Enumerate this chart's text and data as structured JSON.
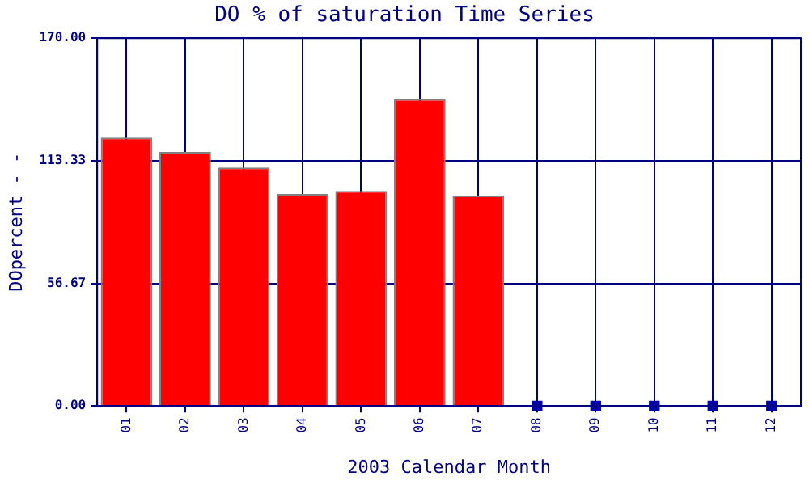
{
  "chart_data": {
    "type": "bar",
    "title": "DO % of saturation Time Series",
    "xlabel": "2003 Calendar Month",
    "ylabel": "DOpercent - -",
    "categories": [
      "01",
      "02",
      "03",
      "04",
      "05",
      "06",
      "07",
      "08",
      "09",
      "10",
      "11",
      "12"
    ],
    "series": [
      {
        "color": "#ff0000",
        "values": [
          124,
          117.4,
          110.2,
          98,
          99.4,
          141.9,
          97.2,
          null,
          null,
          null,
          null,
          null
        ]
      },
      {
        "type": "scatter",
        "color": "#0000aa",
        "x": [
          "08",
          "09",
          "10",
          "11",
          "12"
        ],
        "values": [
          0,
          0,
          0,
          0,
          0
        ],
        "marker": "square"
      }
    ],
    "ylim": [
      0,
      170
    ],
    "yticks": [
      {
        "value": 0,
        "label": "0.00"
      },
      {
        "value": 56.67,
        "label": "56.67"
      },
      {
        "value": 113.33,
        "label": "113.33"
      },
      {
        "value": 170,
        "label": "170.00"
      }
    ],
    "grid": true,
    "legend": false
  }
}
